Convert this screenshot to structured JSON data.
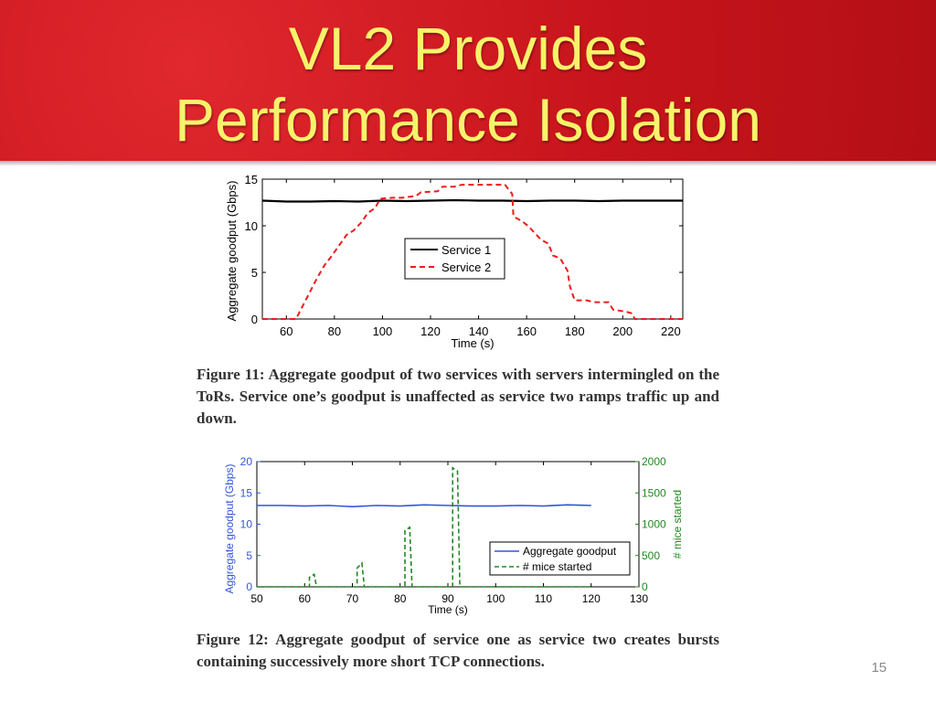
{
  "slide": {
    "title_line1": "VL2 Provides",
    "title_line2": "Performance Isolation",
    "page_number": "15",
    "caption1": "Figure 11: Aggregate goodput of two services with servers intermingled on the ToRs. Service one’s goodput is unaffected as service two ramps traffic up and down.",
    "caption2": "Figure 12: Aggregate goodput of service one as service two creates bursts containing successively more short TCP connections.",
    "banner_color": "#c8141c",
    "title_color": "#f8f36a"
  },
  "chart_data": [
    {
      "type": "line",
      "xlabel": "Time (s)",
      "ylabel": "Aggregate goodput (Gbps)",
      "xlim": [
        50,
        225
      ],
      "ylim": [
        0,
        15
      ],
      "xticks": [
        60,
        80,
        100,
        120,
        140,
        160,
        180,
        200,
        220
      ],
      "yticks": [
        0,
        5,
        10,
        15
      ],
      "legend_position": "center-right",
      "series": [
        {
          "name": "Service 1",
          "color": "#000000",
          "style": "solid",
          "points": [
            [
              50,
              12.7
            ],
            [
              60,
              12.6
            ],
            [
              70,
              12.6
            ],
            [
              80,
              12.65
            ],
            [
              90,
              12.6
            ],
            [
              100,
              12.7
            ],
            [
              110,
              12.65
            ],
            [
              120,
              12.7
            ],
            [
              130,
              12.75
            ],
            [
              140,
              12.7
            ],
            [
              150,
              12.7
            ],
            [
              160,
              12.65
            ],
            [
              170,
              12.7
            ],
            [
              180,
              12.7
            ],
            [
              190,
              12.65
            ],
            [
              200,
              12.7
            ],
            [
              210,
              12.7
            ],
            [
              225,
              12.7
            ]
          ]
        },
        {
          "name": "Service 2",
          "color": "#ee1c1c",
          "style": "dashed",
          "points": [
            [
              50,
              0
            ],
            [
              64,
              0
            ],
            [
              67,
              1.5
            ],
            [
              70,
              3
            ],
            [
              73,
              4.5
            ],
            [
              76,
              5.8
            ],
            [
              79,
              6.8
            ],
            [
              82,
              7.9
            ],
            [
              85,
              9.0
            ],
            [
              88,
              9.5
            ],
            [
              91,
              10.3
            ],
            [
              94,
              11.4
            ],
            [
              97,
              11.9
            ],
            [
              99,
              12.9
            ],
            [
              104,
              13.0
            ],
            [
              108,
              13.0
            ],
            [
              114,
              13.2
            ],
            [
              116,
              13.6
            ],
            [
              123,
              13.7
            ],
            [
              125,
              14.2
            ],
            [
              130,
              14.2
            ],
            [
              133,
              14.4
            ],
            [
              146,
              14.4
            ],
            [
              151,
              14.4
            ],
            [
              154,
              13.4
            ],
            [
              154.5,
              11.0
            ],
            [
              158,
              10.5
            ],
            [
              161,
              9.9
            ],
            [
              162,
              9.6
            ],
            [
              166,
              8.5
            ],
            [
              169,
              8.1
            ],
            [
              171,
              6.8
            ],
            [
              174,
              6.5
            ],
            [
              177,
              5.2
            ],
            [
              178,
              3.5
            ],
            [
              180,
              2.0
            ],
            [
              185,
              2.0
            ],
            [
              188,
              1.8
            ],
            [
              194,
              1.8
            ],
            [
              196,
              1.0
            ],
            [
              201,
              0.8
            ],
            [
              204,
              0.6
            ],
            [
              205,
              0
            ],
            [
              225,
              0
            ]
          ]
        }
      ]
    },
    {
      "type": "line",
      "xlabel": "Time (s)",
      "ylabel": "Aggregate goodput (Gbps)",
      "ylabel_right": "# mice started",
      "xlim": [
        50,
        130
      ],
      "ylim": [
        0,
        20
      ],
      "ylim_right": [
        0,
        2000
      ],
      "xticks": [
        50,
        60,
        70,
        80,
        90,
        100,
        110,
        120,
        130
      ],
      "yticks": [
        0,
        5,
        10,
        15,
        20
      ],
      "yticks_right": [
        0,
        500,
        1000,
        1500,
        2000
      ],
      "legend_position": "bottom-right",
      "series": [
        {
          "name": "Aggregate goodput",
          "axis": "left",
          "color": "#3355dd",
          "style": "solid",
          "points": [
            [
              50,
              13.0
            ],
            [
              55,
              13.0
            ],
            [
              60,
              12.9
            ],
            [
              65,
              13.0
            ],
            [
              70,
              12.8
            ],
            [
              75,
              13.0
            ],
            [
              80,
              12.9
            ],
            [
              85,
              13.1
            ],
            [
              90,
              13.0
            ],
            [
              95,
              12.9
            ],
            [
              100,
              12.9
            ],
            [
              105,
              13.0
            ],
            [
              110,
              12.9
            ],
            [
              115,
              13.1
            ],
            [
              120,
              13.0
            ]
          ]
        },
        {
          "name": "# mice started",
          "axis": "right",
          "color": "#228822",
          "style": "dashed",
          "points": [
            [
              50,
              0
            ],
            [
              61,
              0
            ],
            [
              61,
              150
            ],
            [
              62,
              200
            ],
            [
              62.5,
              0
            ],
            [
              71,
              0
            ],
            [
              71,
              300
            ],
            [
              72,
              380
            ],
            [
              72.5,
              0
            ],
            [
              81,
              0
            ],
            [
              81,
              900
            ],
            [
              82,
              950
            ],
            [
              82.5,
              0
            ],
            [
              91,
              0
            ],
            [
              91,
              1900
            ],
            [
              92,
              1850
            ],
            [
              92.5,
              0
            ],
            [
              120,
              0
            ]
          ]
        }
      ]
    }
  ]
}
